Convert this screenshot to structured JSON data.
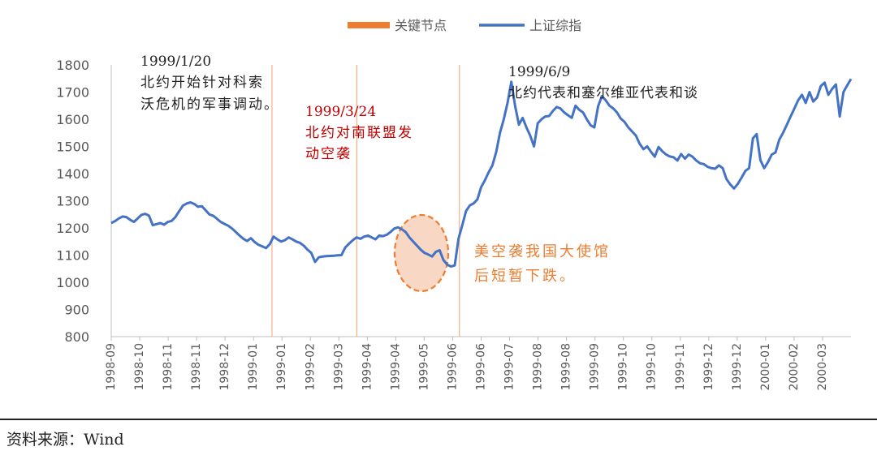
{
  "chart_data": {
    "type": "line",
    "legend": [
      {
        "label": "关键节点",
        "color": "#ED7D31",
        "kind": "bar"
      },
      {
        "label": "上证综指",
        "color": "#4472C4",
        "kind": "line"
      }
    ],
    "legend_placement": "top-center",
    "ylim": [
      800,
      1800
    ],
    "yticks": [
      800,
      900,
      1000,
      1100,
      1200,
      1300,
      1400,
      1500,
      1600,
      1700,
      1800
    ],
    "xtick_labels": [
      "1998-09",
      "1998-10",
      "1998-11",
      "1998-11",
      "1998-12",
      "1999-01",
      "1999-01",
      "1999-02",
      "1999-03",
      "1999-04",
      "1999-04",
      "1999-05",
      "1999-06",
      "1999-06",
      "1999-07",
      "1999-08",
      "1999-08",
      "1999-09",
      "1999-10",
      "1999-10",
      "1999-11",
      "1999-12",
      "1999-12",
      "2000-01",
      "2000-02",
      "2000-03"
    ],
    "series": [
      {
        "name": "上证综指",
        "color": "#4472C4",
        "values": [
          1218,
          1225,
          1235,
          1242,
          1240,
          1230,
          1222,
          1235,
          1248,
          1252,
          1245,
          1210,
          1214,
          1218,
          1212,
          1222,
          1226,
          1240,
          1262,
          1282,
          1290,
          1294,
          1288,
          1278,
          1280,
          1265,
          1250,
          1245,
          1234,
          1222,
          1215,
          1208,
          1198,
          1185,
          1172,
          1160,
          1152,
          1162,
          1148,
          1138,
          1132,
          1126,
          1140,
          1168,
          1158,
          1150,
          1155,
          1165,
          1158,
          1150,
          1145,
          1135,
          1120,
          1108,
          1075,
          1092,
          1095,
          1096,
          1097,
          1098,
          1099,
          1100,
          1128,
          1142,
          1155,
          1165,
          1160,
          1168,
          1172,
          1165,
          1158,
          1172,
          1170,
          1175,
          1185,
          1198,
          1202,
          1195,
          1185,
          1165,
          1150,
          1135,
          1120,
          1108,
          1102,
          1095,
          1112,
          1118,
          1082,
          1065,
          1058,
          1062,
          1160,
          1210,
          1262,
          1283,
          1290,
          1305,
          1350,
          1375,
          1405,
          1430,
          1480,
          1550,
          1600,
          1660,
          1738,
          1650,
          1580,
          1605,
          1570,
          1540,
          1500,
          1585,
          1600,
          1610,
          1612,
          1630,
          1645,
          1640,
          1625,
          1615,
          1605,
          1650,
          1635,
          1625,
          1600,
          1578,
          1570,
          1648,
          1685,
          1670,
          1650,
          1640,
          1625,
          1602,
          1590,
          1570,
          1555,
          1540,
          1510,
          1490,
          1500,
          1480,
          1462,
          1498,
          1482,
          1470,
          1463,
          1460,
          1448,
          1472,
          1455,
          1470,
          1462,
          1448,
          1438,
          1435,
          1425,
          1420,
          1418,
          1430,
          1420,
          1380,
          1360,
          1345,
          1362,
          1385,
          1410,
          1420,
          1530,
          1545,
          1450,
          1420,
          1442,
          1470,
          1478,
          1525,
          1550,
          1580,
          1610,
          1640,
          1670,
          1690,
          1660,
          1700,
          1665,
          1680,
          1722,
          1735,
          1690,
          1712,
          1728,
          1610,
          1700,
          1725,
          1748
        ]
      }
    ],
    "key_nodes": [
      {
        "date": "1999/1/20",
        "x_frac": 0.2173
      },
      {
        "date": "1999/3/24",
        "x_frac": 0.332
      },
      {
        "date": "1999/6/9",
        "x_frac": 0.4706
      }
    ],
    "annotations": [
      {
        "lines": [
          "1999/1/20",
          "北约开始针对科索",
          "沃危机的军事调动。"
        ],
        "color": "#222222"
      },
      {
        "lines": [
          "1999/3/24",
          "北约对南联盟发",
          "动空袭"
        ],
        "color": "#C00000"
      },
      {
        "lines": [
          "1999/6/9",
          "北约代表和塞尔维亚代表和谈"
        ],
        "color": "#222222"
      },
      {
        "lines": [
          "美空袭我国大使馆",
          "后短暂下跌。"
        ],
        "color": "#ED7D31"
      }
    ]
  },
  "source": {
    "text": "资料来源：Wind"
  }
}
